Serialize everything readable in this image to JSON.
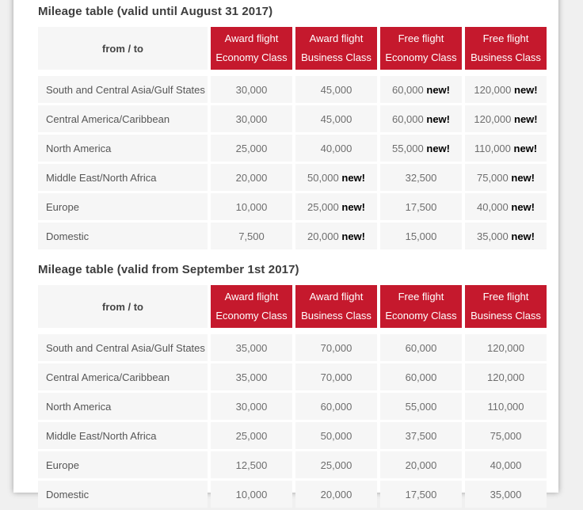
{
  "labels": {
    "new_badge": "new!"
  },
  "colors": {
    "header_red": "#c5192d",
    "header_text": "#ffffff",
    "cell_bg": "#f6f6f6",
    "card_bg": "#ffffff",
    "page_bg": "#f0f0f0",
    "title_text": "#3d3d3d",
    "region_text": "#565656",
    "number_text": "#6e6e6e",
    "new_text": "#000000"
  },
  "sections": [
    {
      "title": "Mileage table (valid until August 31 2017)",
      "from_to_label": "from / to",
      "column_headers": [
        "Award flight\nEconomy Class",
        "Award flight\nBusiness Class",
        "Free flight\nEconomy Class",
        "Free flight\nBusiness Class"
      ],
      "rows": [
        {
          "region": "South and Central Asia/Gulf States",
          "values": [
            "30,000",
            "45,000",
            "60,000",
            "120,000"
          ],
          "new_flags": [
            false,
            false,
            true,
            true
          ]
        },
        {
          "region": "Central America/Caribbean",
          "values": [
            "30,000",
            "45,000",
            "60,000",
            "120,000"
          ],
          "new_flags": [
            false,
            false,
            true,
            true
          ]
        },
        {
          "region": "North America",
          "values": [
            "25,000",
            "40,000",
            "55,000",
            "110,000"
          ],
          "new_flags": [
            false,
            false,
            true,
            true
          ]
        },
        {
          "region": "Middle East/North Africa",
          "values": [
            "20,000",
            "50,000",
            "32,500",
            "75,000"
          ],
          "new_flags": [
            false,
            true,
            false,
            true
          ]
        },
        {
          "region": "Europe",
          "values": [
            "10,000",
            "25,000",
            "17,500",
            "40,000"
          ],
          "new_flags": [
            false,
            true,
            false,
            true
          ]
        },
        {
          "region": "Domestic",
          "values": [
            "7,500",
            "20,000",
            "15,000",
            "35,000"
          ],
          "new_flags": [
            false,
            true,
            false,
            true
          ]
        }
      ]
    },
    {
      "title": "Mileage table (valid from September 1st 2017)",
      "from_to_label": "from / to",
      "column_headers": [
        "Award flight\nEconomy Class",
        "Award flight\nBusiness Class",
        "Free flight\nEconomy Class",
        "Free flight\nBusiness Class"
      ],
      "rows": [
        {
          "region": "South and Central Asia/Gulf States",
          "values": [
            "35,000",
            "70,000",
            "60,000",
            "120,000"
          ]
        },
        {
          "region": "Central America/Caribbean",
          "values": [
            "35,000",
            "70,000",
            "60,000",
            "120,000"
          ]
        },
        {
          "region": "North America",
          "values": [
            "30,000",
            "60,000",
            "55,000",
            "110,000"
          ]
        },
        {
          "region": "Middle East/North Africa",
          "values": [
            "25,000",
            "50,000",
            "37,500",
            "75,000"
          ]
        },
        {
          "region": "Europe",
          "values": [
            "12,500",
            "25,000",
            "20,000",
            "40,000"
          ]
        },
        {
          "region": "Domestic",
          "values": [
            "10,000",
            "20,000",
            "17,500",
            "35,000"
          ]
        }
      ]
    }
  ]
}
